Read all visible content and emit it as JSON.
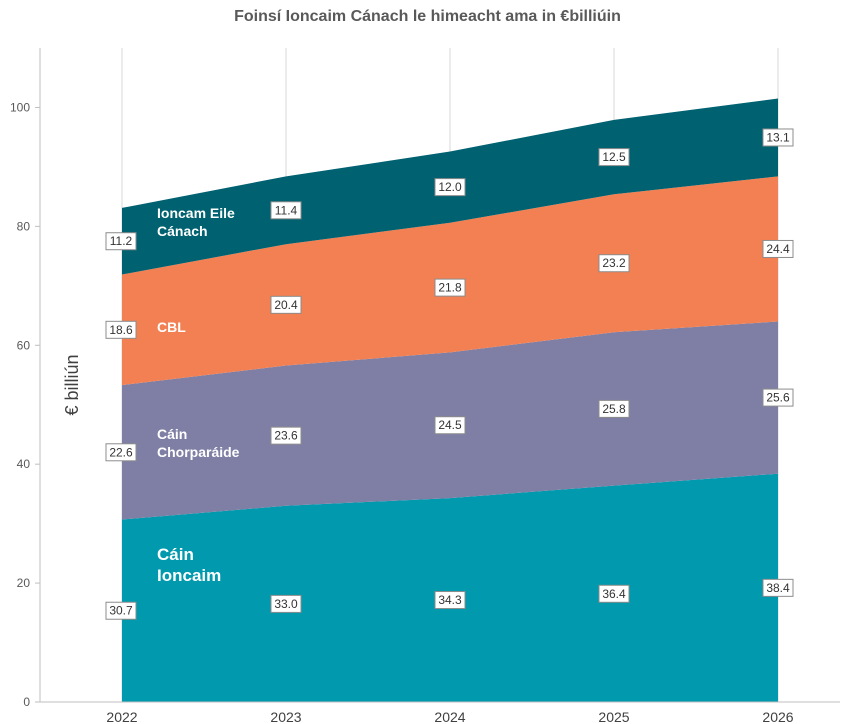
{
  "chart_data": {
    "type": "area",
    "stacked": true,
    "title": "Foinsí Ioncaim Cánach le himeacht ama in €billiúin",
    "ylabel": "€ billiún",
    "xlabel": "",
    "x": [
      "2022",
      "2023",
      "2024",
      "2025",
      "2026"
    ],
    "ylim": [
      0,
      110
    ],
    "yticks": [
      0,
      20,
      40,
      60,
      80,
      100
    ],
    "grid": "vertical",
    "series": [
      {
        "name": "Cáin Ioncaim",
        "label_lines": [
          "Cáin",
          "Ioncaim"
        ],
        "color": "#0099ad",
        "values": [
          30.7,
          33.0,
          34.3,
          36.4,
          38.4
        ]
      },
      {
        "name": "Cáin Chorparáide",
        "label_lines": [
          "Cáin",
          "Chorparáide"
        ],
        "color": "#7f7fa6",
        "values": [
          22.6,
          23.6,
          24.5,
          25.8,
          25.6
        ]
      },
      {
        "name": "CBL",
        "label_lines": [
          "CBL"
        ],
        "color": "#f28052",
        "values": [
          18.6,
          20.4,
          21.8,
          23.2,
          24.4
        ]
      },
      {
        "name": "Ioncam Eile Cánach",
        "label_lines": [
          "Ioncam Eile",
          "Cánach"
        ],
        "color": "#006170",
        "values": [
          11.2,
          11.4,
          12.0,
          12.5,
          13.1
        ]
      }
    ],
    "data_labels": [
      [
        "30.7",
        "33.0",
        "34.3",
        "36.4",
        "38.4"
      ],
      [
        "22.6",
        "23.6",
        "24.5",
        "25.8",
        "25.6"
      ],
      [
        "18.6",
        "20.4",
        "21.8",
        "23.2",
        "24.4"
      ],
      [
        "11.2",
        "11.4",
        "12.0",
        "12.5",
        "13.1"
      ]
    ]
  }
}
